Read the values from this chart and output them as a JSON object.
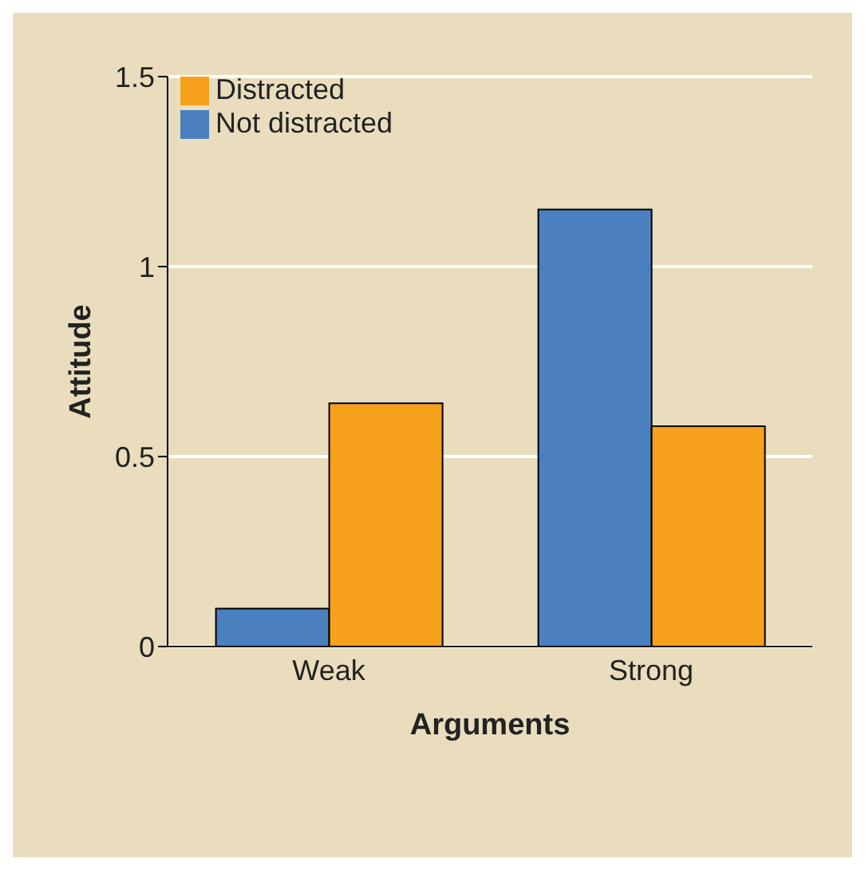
{
  "chart_data": {
    "type": "bar",
    "xlabel": "Arguments",
    "ylabel": "Attitude",
    "categories": [
      "Weak",
      "Strong"
    ],
    "series": [
      {
        "name": "Not distracted",
        "color": "#4a80c0",
        "values": [
          0.1,
          1.15
        ]
      },
      {
        "name": "Distracted",
        "color": "#f7a01c",
        "values": [
          0.64,
          0.58
        ]
      }
    ],
    "ylim": [
      0,
      1.5
    ],
    "yticks": [
      0,
      0.5,
      1,
      1.5
    ],
    "grid": "y",
    "legend": "top left"
  }
}
